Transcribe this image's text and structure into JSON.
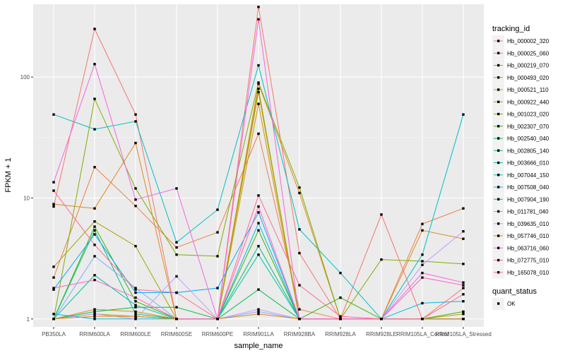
{
  "chart_data": {
    "type": "line",
    "title": "",
    "xlabel": "sample_name",
    "ylabel": "FPKM + 1",
    "y_scale": "log10",
    "ylim": [
      0.86,
      400
    ],
    "y_ticks": [
      1,
      10,
      100
    ],
    "y_tick_labels": [
      "1",
      "10",
      "100"
    ],
    "grid": true,
    "legend_position": "right",
    "categories": [
      "PB350LA",
      "RRIM600LA",
      "RRIM600LE",
      "RRIM600SE",
      "RRIM600PE",
      "RRIM901LA",
      "RRIM928BA",
      "RRIM928LA",
      "RRIM928LE",
      "RRIM105LA_Control",
      "RRIM105LA_Stressed"
    ],
    "series_legend_title": "tracking_id",
    "series": [
      {
        "name": "Hb_000002_320",
        "color": "#F8766D",
        "values": [
          8.5,
          250,
          49,
          1,
          1,
          380,
          3.5,
          1,
          7.3,
          1,
          1.8
        ]
      },
      {
        "name": "Hb_000025_060",
        "color": "#EF7F49",
        "values": [
          2.2,
          18,
          8.6,
          3.9,
          5.2,
          34,
          1.2,
          1,
          1,
          6.1,
          8.2
        ]
      },
      {
        "name": "Hb_000219_070",
        "color": "#E2881F",
        "values": [
          8.9,
          8.2,
          28.5,
          1,
          1,
          88,
          11,
          1,
          1,
          5.4,
          4.6
        ]
      },
      {
        "name": "Hb_000493_020",
        "color": "#D0920A",
        "values": [
          1.0,
          1.2,
          1.15,
          1,
          1,
          60,
          1,
          1,
          1,
          1,
          1
        ]
      },
      {
        "name": "Hb_000521_110",
        "color": "#BB9D00",
        "values": [
          1.0,
          1.1,
          1.05,
          1,
          1,
          75,
          1,
          1,
          1,
          1,
          1.1
        ]
      },
      {
        "name": "Hb_000922_440",
        "color": "#A3A500",
        "values": [
          2.7,
          6.4,
          4.0,
          1,
          1,
          80,
          1,
          1,
          1,
          1,
          1
        ]
      },
      {
        "name": "Hb_001023_020",
        "color": "#7FAE00",
        "values": [
          1.0,
          66,
          12,
          3.4,
          3.3,
          90,
          12.2,
          1,
          3.1,
          3.0,
          2.85
        ]
      },
      {
        "name": "Hb_002307_070",
        "color": "#39B600",
        "values": [
          1.0,
          5.8,
          1.4,
          1,
          1,
          5.4,
          1,
          1.5,
          1,
          1,
          1.15
        ]
      },
      {
        "name": "Hb_002540_040",
        "color": "#00BB4E",
        "values": [
          1.0,
          1.15,
          1.25,
          1.25,
          1,
          1.75,
          1,
          1,
          1,
          1,
          1
        ]
      },
      {
        "name": "Hb_002805_140",
        "color": "#00BF7D",
        "values": [
          1.0,
          5.4,
          1.1,
          1,
          1,
          4.0,
          1,
          1,
          1,
          1,
          1
        ]
      },
      {
        "name": "Hb_003666_010",
        "color": "#00C1A3",
        "values": [
          1.0,
          2.3,
          1.3,
          1,
          1,
          3.4,
          1,
          1,
          1,
          1,
          1
        ]
      },
      {
        "name": "Hb_007044_150",
        "color": "#00BFC4",
        "values": [
          49,
          37,
          43,
          4.3,
          8,
          125,
          5.5,
          2.4,
          1,
          3.4,
          49
        ]
      },
      {
        "name": "Hb_007508_040",
        "color": "#00B8E7",
        "values": [
          1.1,
          1.0,
          1.0,
          1,
          1,
          6.2,
          1,
          1,
          1,
          1.35,
          1.4
        ]
      },
      {
        "name": "Hb_007904_190",
        "color": "#00A9FF",
        "values": [
          1.75,
          5.0,
          1.65,
          1.65,
          1.8,
          7.6,
          1,
          1,
          1,
          1,
          1
        ]
      },
      {
        "name": "Hb_011781_040",
        "color": "#7CAEFF",
        "values": [
          1.0,
          3.3,
          1.8,
          1,
          1,
          1.15,
          1,
          1,
          1,
          1,
          1
        ]
      },
      {
        "name": "Hb_039635_010",
        "color": "#C59CFF",
        "values": [
          1.0,
          1.1,
          1.0,
          2.25,
          1,
          1.2,
          1,
          1,
          1,
          2.8,
          5.3
        ]
      },
      {
        "name": "Hb_057746_010",
        "color": "#E68613",
        "values": [
          1.0,
          1.05,
          1.05,
          1,
          1,
          1.1,
          1,
          1,
          1,
          1,
          1
        ]
      },
      {
        "name": "Hb_063716_060",
        "color": "#F564E3",
        "values": [
          13.5,
          128,
          9.7,
          12,
          1,
          300,
          1,
          1,
          1,
          2.4,
          2.0
        ]
      },
      {
        "name": "Hb_072775_010",
        "color": "#FF62BC",
        "values": [
          1.8,
          2.1,
          1.5,
          1,
          1,
          8.5,
          1,
          1,
          1,
          2.2,
          1.9
        ]
      },
      {
        "name": "Hb_165078_010",
        "color": "#FF6C91",
        "values": [
          11.5,
          4.1,
          1.75,
          1.65,
          1,
          10.5,
          1.9,
          1.05,
          1,
          1,
          1.6
        ]
      }
    ],
    "shape_legend": {
      "title": "quant_status",
      "items": [
        {
          "label": "OK"
        }
      ]
    }
  }
}
